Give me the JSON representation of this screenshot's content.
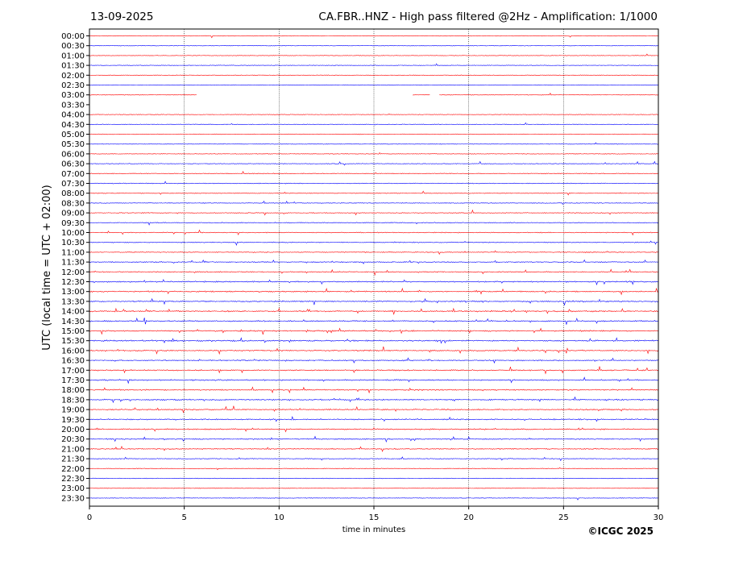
{
  "date": "13-09-2025",
  "title": "CA.FBR..HNZ - High pass filtered @2Hz - Amplification: 1/1000",
  "copyright": "©ICGC 2025",
  "chart_data": {
    "type": "line",
    "title": "CA.FBR..HNZ - High pass filtered @2Hz - Amplification: 1/1000",
    "xlabel": "time in minutes",
    "ylabel": "UTC (local time = UTC + 02:00)",
    "xlim": [
      0,
      30
    ],
    "x_ticks": [
      0,
      5,
      10,
      15,
      20,
      25,
      30
    ],
    "grid": "vertical dotted at 5-minute intervals",
    "rows": [
      "00:00",
      "00:30",
      "01:00",
      "01:30",
      "02:00",
      "02:30",
      "03:00",
      "03:30",
      "04:00",
      "04:30",
      "05:00",
      "05:30",
      "06:00",
      "06:30",
      "07:00",
      "07:30",
      "08:00",
      "08:30",
      "09:00",
      "09:30",
      "10:00",
      "10:30",
      "11:00",
      "11:30",
      "12:00",
      "12:30",
      "13:00",
      "13:30",
      "14:00",
      "14:30",
      "15:00",
      "15:30",
      "16:00",
      "16:30",
      "17:00",
      "17:30",
      "18:00",
      "18:30",
      "19:00",
      "19:30",
      "20:00",
      "20:30",
      "21:00",
      "21:30",
      "22:00",
      "22:30",
      "23:00",
      "23:30"
    ],
    "row_colors": [
      "#ff0000",
      "#0000ff"
    ],
    "activity": [
      0.02,
      0.02,
      0.02,
      0.02,
      0.02,
      0.02,
      0.03,
      0,
      0.02,
      0.05,
      0.06,
      0.04,
      0.05,
      0.12,
      0.15,
      0.15,
      0.13,
      0.15,
      0.18,
      0.2,
      0.22,
      0.22,
      0.25,
      0.3,
      0.3,
      0.45,
      0.45,
      0.5,
      0.5,
      0.45,
      0.5,
      0.55,
      0.5,
      0.4,
      0.45,
      0.45,
      0.4,
      0.45,
      0.5,
      0.45,
      0.45,
      0.35,
      0.35,
      0.15,
      0.05,
      0.03,
      0.02,
      0.02
    ],
    "gaps_minutes": [
      {
        "row": "03:00",
        "ranges": [
          [
            5.7,
            17.0
          ],
          [
            18.0,
            18.4
          ]
        ]
      },
      {
        "row": "03:30",
        "ranges": [
          [
            0,
            30
          ]
        ]
      }
    ]
  }
}
